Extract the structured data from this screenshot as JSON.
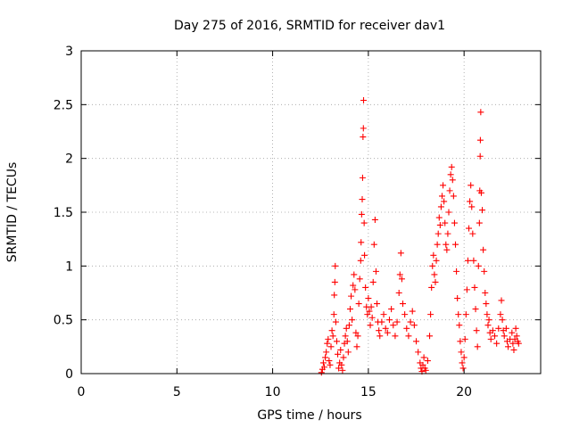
{
  "chart_data": {
    "type": "scatter",
    "title": "Day 275 of 2016, SRMTID for receiver dav1",
    "xlabel": "GPS time / hours",
    "ylabel": "SRMTID / TECUs",
    "xlim": [
      0,
      24
    ],
    "ylim": [
      0,
      3
    ],
    "xticks": [
      "0",
      "5",
      "10",
      "15",
      "20"
    ],
    "yticks": [
      "0",
      "0.5",
      "1",
      "1.5",
      "2",
      "2.5",
      "3"
    ],
    "grid": true,
    "marker": "+",
    "marker_color": "#ff0000",
    "series": [
      {
        "name": "dav1",
        "points": [
          [
            12.55,
            0.01
          ],
          [
            12.6,
            0.04
          ],
          [
            12.65,
            0.1
          ],
          [
            12.7,
            0.06
          ],
          [
            12.75,
            0.15
          ],
          [
            12.8,
            0.2
          ],
          [
            12.85,
            0.28
          ],
          [
            12.9,
            0.32
          ],
          [
            12.95,
            0.12
          ],
          [
            13.0,
            0.08
          ],
          [
            13.05,
            0.25
          ],
          [
            13.1,
            0.4
          ],
          [
            13.15,
            0.35
          ],
          [
            13.2,
            0.55
          ],
          [
            13.22,
            0.73
          ],
          [
            13.25,
            0.85
          ],
          [
            13.27,
            1.0
          ],
          [
            13.3,
            0.48
          ],
          [
            13.35,
            0.3
          ],
          [
            13.4,
            0.18
          ],
          [
            13.45,
            0.05
          ],
          [
            13.5,
            0.1
          ],
          [
            13.55,
            0.22
          ],
          [
            13.6,
            0.08
          ],
          [
            13.65,
            0.03
          ],
          [
            13.7,
            0.15
          ],
          [
            13.75,
            0.28
          ],
          [
            13.8,
            0.35
          ],
          [
            13.85,
            0.42
          ],
          [
            13.9,
            0.3
          ],
          [
            13.95,
            0.2
          ],
          [
            14.0,
            0.45
          ],
          [
            14.05,
            0.6
          ],
          [
            14.1,
            0.72
          ],
          [
            14.15,
            0.5
          ],
          [
            14.2,
            0.82
          ],
          [
            14.25,
            0.92
          ],
          [
            14.3,
            0.78
          ],
          [
            14.35,
            0.38
          ],
          [
            14.4,
            0.25
          ],
          [
            14.45,
            0.35
          ],
          [
            14.5,
            0.65
          ],
          [
            14.55,
            0.88
          ],
          [
            14.6,
            1.05
          ],
          [
            14.62,
            1.22
          ],
          [
            14.65,
            1.48
          ],
          [
            14.68,
            1.62
          ],
          [
            14.7,
            1.82
          ],
          [
            14.72,
            2.2
          ],
          [
            14.74,
            2.28
          ],
          [
            14.75,
            2.54
          ],
          [
            14.78,
            1.4
          ],
          [
            14.8,
            1.1
          ],
          [
            14.85,
            0.8
          ],
          [
            14.9,
            0.62
          ],
          [
            14.95,
            0.55
          ],
          [
            15.0,
            0.7
          ],
          [
            15.05,
            0.58
          ],
          [
            15.1,
            0.45
          ],
          [
            15.15,
            0.62
          ],
          [
            15.2,
            0.52
          ],
          [
            15.25,
            0.85
          ],
          [
            15.3,
            1.2
          ],
          [
            15.35,
            1.43
          ],
          [
            15.4,
            0.95
          ],
          [
            15.45,
            0.65
          ],
          [
            15.5,
            0.48
          ],
          [
            15.55,
            0.4
          ],
          [
            15.6,
            0.35
          ],
          [
            15.7,
            0.48
          ],
          [
            15.8,
            0.55
          ],
          [
            15.9,
            0.42
          ],
          [
            16.0,
            0.38
          ],
          [
            16.1,
            0.5
          ],
          [
            16.2,
            0.6
          ],
          [
            16.3,
            0.45
          ],
          [
            16.4,
            0.35
          ],
          [
            16.5,
            0.48
          ],
          [
            16.6,
            0.75
          ],
          [
            16.65,
            0.92
          ],
          [
            16.7,
            1.12
          ],
          [
            16.75,
            0.88
          ],
          [
            16.8,
            0.65
          ],
          [
            16.9,
            0.55
          ],
          [
            17.0,
            0.42
          ],
          [
            17.1,
            0.35
          ],
          [
            17.2,
            0.48
          ],
          [
            17.3,
            0.58
          ],
          [
            17.4,
            0.45
          ],
          [
            17.5,
            0.3
          ],
          [
            17.6,
            0.2
          ],
          [
            17.7,
            0.1
          ],
          [
            17.75,
            0.05
          ],
          [
            17.8,
            0.02
          ],
          [
            17.85,
            0.08
          ],
          [
            17.9,
            0.15
          ],
          [
            17.95,
            0.05
          ],
          [
            18.0,
            0.03
          ],
          [
            18.1,
            0.12
          ],
          [
            18.2,
            0.35
          ],
          [
            18.25,
            0.55
          ],
          [
            18.3,
            0.8
          ],
          [
            18.35,
            1.0
          ],
          [
            18.4,
            1.1
          ],
          [
            18.45,
            0.92
          ],
          [
            18.5,
            0.85
          ],
          [
            18.55,
            1.05
          ],
          [
            18.6,
            1.2
          ],
          [
            18.65,
            1.3
          ],
          [
            18.7,
            1.45
          ],
          [
            18.75,
            1.38
          ],
          [
            18.8,
            1.55
          ],
          [
            18.85,
            1.65
          ],
          [
            18.9,
            1.75
          ],
          [
            18.95,
            1.6
          ],
          [
            19.0,
            1.4
          ],
          [
            19.05,
            1.2
          ],
          [
            19.1,
            1.15
          ],
          [
            19.15,
            1.3
          ],
          [
            19.2,
            1.5
          ],
          [
            19.25,
            1.7
          ],
          [
            19.3,
            1.85
          ],
          [
            19.35,
            1.92
          ],
          [
            19.4,
            1.8
          ],
          [
            19.45,
            1.65
          ],
          [
            19.5,
            1.4
          ],
          [
            19.55,
            1.2
          ],
          [
            19.6,
            0.95
          ],
          [
            19.65,
            0.7
          ],
          [
            19.7,
            0.55
          ],
          [
            19.75,
            0.45
          ],
          [
            19.8,
            0.3
          ],
          [
            19.85,
            0.2
          ],
          [
            19.9,
            0.1
          ],
          [
            19.95,
            0.05
          ],
          [
            20.0,
            0.15
          ],
          [
            20.05,
            0.32
          ],
          [
            20.1,
            0.55
          ],
          [
            20.15,
            0.78
          ],
          [
            20.2,
            1.05
          ],
          [
            20.25,
            1.35
          ],
          [
            20.3,
            1.6
          ],
          [
            20.35,
            1.75
          ],
          [
            20.4,
            1.55
          ],
          [
            20.45,
            1.3
          ],
          [
            20.5,
            1.05
          ],
          [
            20.55,
            0.8
          ],
          [
            20.6,
            0.6
          ],
          [
            20.65,
            0.4
          ],
          [
            20.7,
            0.25
          ],
          [
            20.75,
            1.0
          ],
          [
            20.8,
            1.4
          ],
          [
            20.82,
            1.7
          ],
          [
            20.84,
            2.02
          ],
          [
            20.85,
            2.17
          ],
          [
            20.87,
            2.43
          ],
          [
            20.9,
            1.68
          ],
          [
            20.95,
            1.52
          ],
          [
            21.0,
            1.15
          ],
          [
            21.05,
            0.95
          ],
          [
            21.1,
            0.75
          ],
          [
            21.15,
            0.65
          ],
          [
            21.2,
            0.55
          ],
          [
            21.25,
            0.45
          ],
          [
            21.3,
            0.5
          ],
          [
            21.35,
            0.38
          ],
          [
            21.4,
            0.32
          ],
          [
            21.5,
            0.4
          ],
          [
            21.6,
            0.35
          ],
          [
            21.7,
            0.28
          ],
          [
            21.8,
            0.42
          ],
          [
            21.9,
            0.55
          ],
          [
            21.95,
            0.68
          ],
          [
            22.0,
            0.5
          ],
          [
            22.05,
            0.4
          ],
          [
            22.1,
            0.35
          ],
          [
            22.2,
            0.42
          ],
          [
            22.25,
            0.3
          ],
          [
            22.3,
            0.25
          ],
          [
            22.4,
            0.32
          ],
          [
            22.5,
            0.38
          ],
          [
            22.55,
            0.28
          ],
          [
            22.6,
            0.22
          ],
          [
            22.65,
            0.32
          ],
          [
            22.7,
            0.42
          ],
          [
            22.75,
            0.35
          ],
          [
            22.8,
            0.3
          ],
          [
            22.85,
            0.28
          ]
        ]
      }
    ]
  }
}
